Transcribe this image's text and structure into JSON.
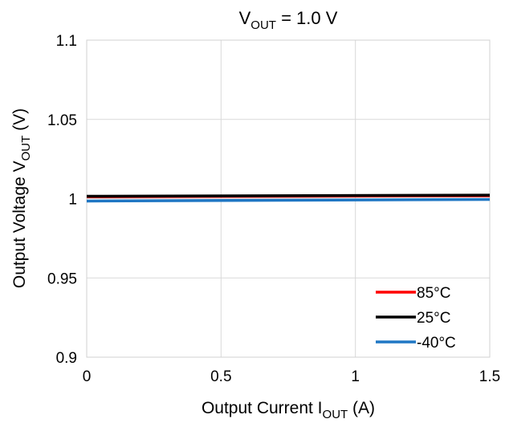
{
  "chart_data": {
    "type": "line",
    "title": {
      "main": "V",
      "sub": "OUT",
      "suffix": " = 1.0 V"
    },
    "xlabel": {
      "main": "Output Current I",
      "sub": "OUT",
      "suffix": " (A)"
    },
    "ylabel": {
      "main": "Output Voltage V",
      "sub": "OUT",
      "suffix": " (V)"
    },
    "xlim": [
      0,
      1.5
    ],
    "ylim": [
      0.9,
      1.1
    ],
    "xticks": [
      "0",
      "0.5",
      "1",
      "1.5"
    ],
    "yticks": [
      "0.9",
      "0.95",
      "1",
      "1.05",
      "1.1"
    ],
    "grid": true,
    "legend_position": "bottom-right",
    "series": [
      {
        "name": "85°C",
        "color": "#ff0000",
        "x": [
          0,
          1.5
        ],
        "y": [
          1.0012,
          1.0018
        ]
      },
      {
        "name": "25°C",
        "color": "#000000",
        "x": [
          0,
          1.5
        ],
        "y": [
          1.0015,
          1.0022
        ]
      },
      {
        "name": "-40°C",
        "color": "#1f77c4",
        "x": [
          0,
          1.5
        ],
        "y": [
          0.9985,
          0.9995
        ]
      }
    ]
  }
}
